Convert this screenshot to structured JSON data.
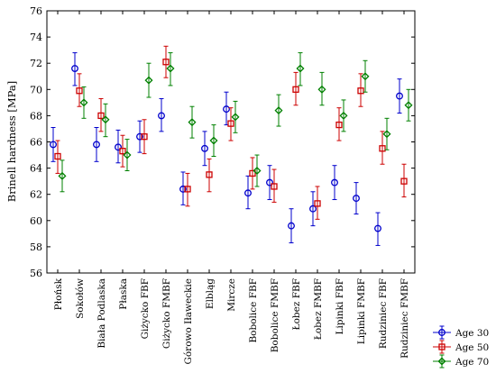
{
  "chart_data": {
    "type": "scatter",
    "title": "",
    "xlabel": "",
    "ylabel": "Brinell hardness [MPa]",
    "ylim": [
      56,
      76
    ],
    "yticks": [
      56,
      58,
      60,
      62,
      64,
      66,
      68,
      70,
      72,
      74,
      76
    ],
    "grid": false,
    "legend_position": "bottom-right",
    "categories": [
      "Płońsk",
      "Sokołów",
      "Biała Podlaska",
      "Płaska",
      "Giżycko FBF",
      "Giżycko FMBF",
      "Górowo Iławeckie",
      "Elbląg",
      "Mircze",
      "Bobolice FBF",
      "Bobolice FMBF",
      "Łobez FBF",
      "Łobez FMBF",
      "Lipinki FBF",
      "Lipinki FMBF",
      "Rudziniec FBF",
      "Rudziniec FMBF"
    ],
    "series": [
      {
        "name": "Age 30",
        "color": "#0000cc",
        "marker": "circle",
        "values": [
          65.8,
          71.6,
          65.8,
          65.6,
          66.4,
          68.0,
          62.4,
          65.5,
          68.5,
          62.1,
          62.9,
          59.6,
          60.9,
          62.9,
          61.7,
          59.4,
          69.5
        ],
        "lower": [
          64.5,
          70.3,
          64.5,
          64.4,
          65.2,
          66.8,
          61.2,
          64.2,
          67.3,
          60.9,
          61.6,
          58.3,
          59.6,
          61.6,
          60.5,
          58.1,
          68.2
        ],
        "upper": [
          67.1,
          72.8,
          67.1,
          66.9,
          67.6,
          69.3,
          63.7,
          66.8,
          69.8,
          63.4,
          64.2,
          60.9,
          62.2,
          64.2,
          62.9,
          60.6,
          70.8
        ]
      },
      {
        "name": "Age 50",
        "color": "#cc0000",
        "marker": "square",
        "values": [
          64.9,
          69.9,
          68.0,
          65.3,
          66.4,
          72.1,
          62.4,
          63.5,
          67.4,
          63.6,
          62.6,
          70.0,
          61.3,
          67.3,
          69.9,
          65.5,
          63.0
        ],
        "lower": [
          63.6,
          68.7,
          66.8,
          64.1,
          65.1,
          70.9,
          61.1,
          62.2,
          66.1,
          62.4,
          61.4,
          68.8,
          60.1,
          66.1,
          68.7,
          64.3,
          61.8
        ],
        "upper": [
          66.1,
          71.2,
          69.3,
          66.5,
          67.7,
          73.3,
          63.6,
          64.7,
          68.6,
          64.8,
          63.9,
          71.3,
          62.6,
          68.6,
          71.2,
          66.8,
          64.3
        ]
      },
      {
        "name": "Age 70",
        "color": "#008000",
        "marker": "diamond",
        "values": [
          63.4,
          69.0,
          67.7,
          65.0,
          70.7,
          71.6,
          67.5,
          66.1,
          67.9,
          63.8,
          68.4,
          71.6,
          70.0,
          68.0,
          71.0,
          66.6,
          68.8
        ],
        "lower": [
          62.2,
          67.8,
          66.4,
          63.8,
          69.4,
          70.3,
          66.3,
          64.9,
          66.7,
          62.6,
          67.2,
          70.3,
          68.8,
          66.8,
          69.8,
          65.4,
          67.6
        ],
        "upper": [
          64.6,
          70.2,
          68.9,
          66.2,
          72.0,
          72.8,
          68.7,
          67.3,
          69.1,
          65.0,
          69.6,
          72.8,
          71.3,
          69.2,
          72.2,
          67.8,
          70.0
        ]
      }
    ]
  }
}
